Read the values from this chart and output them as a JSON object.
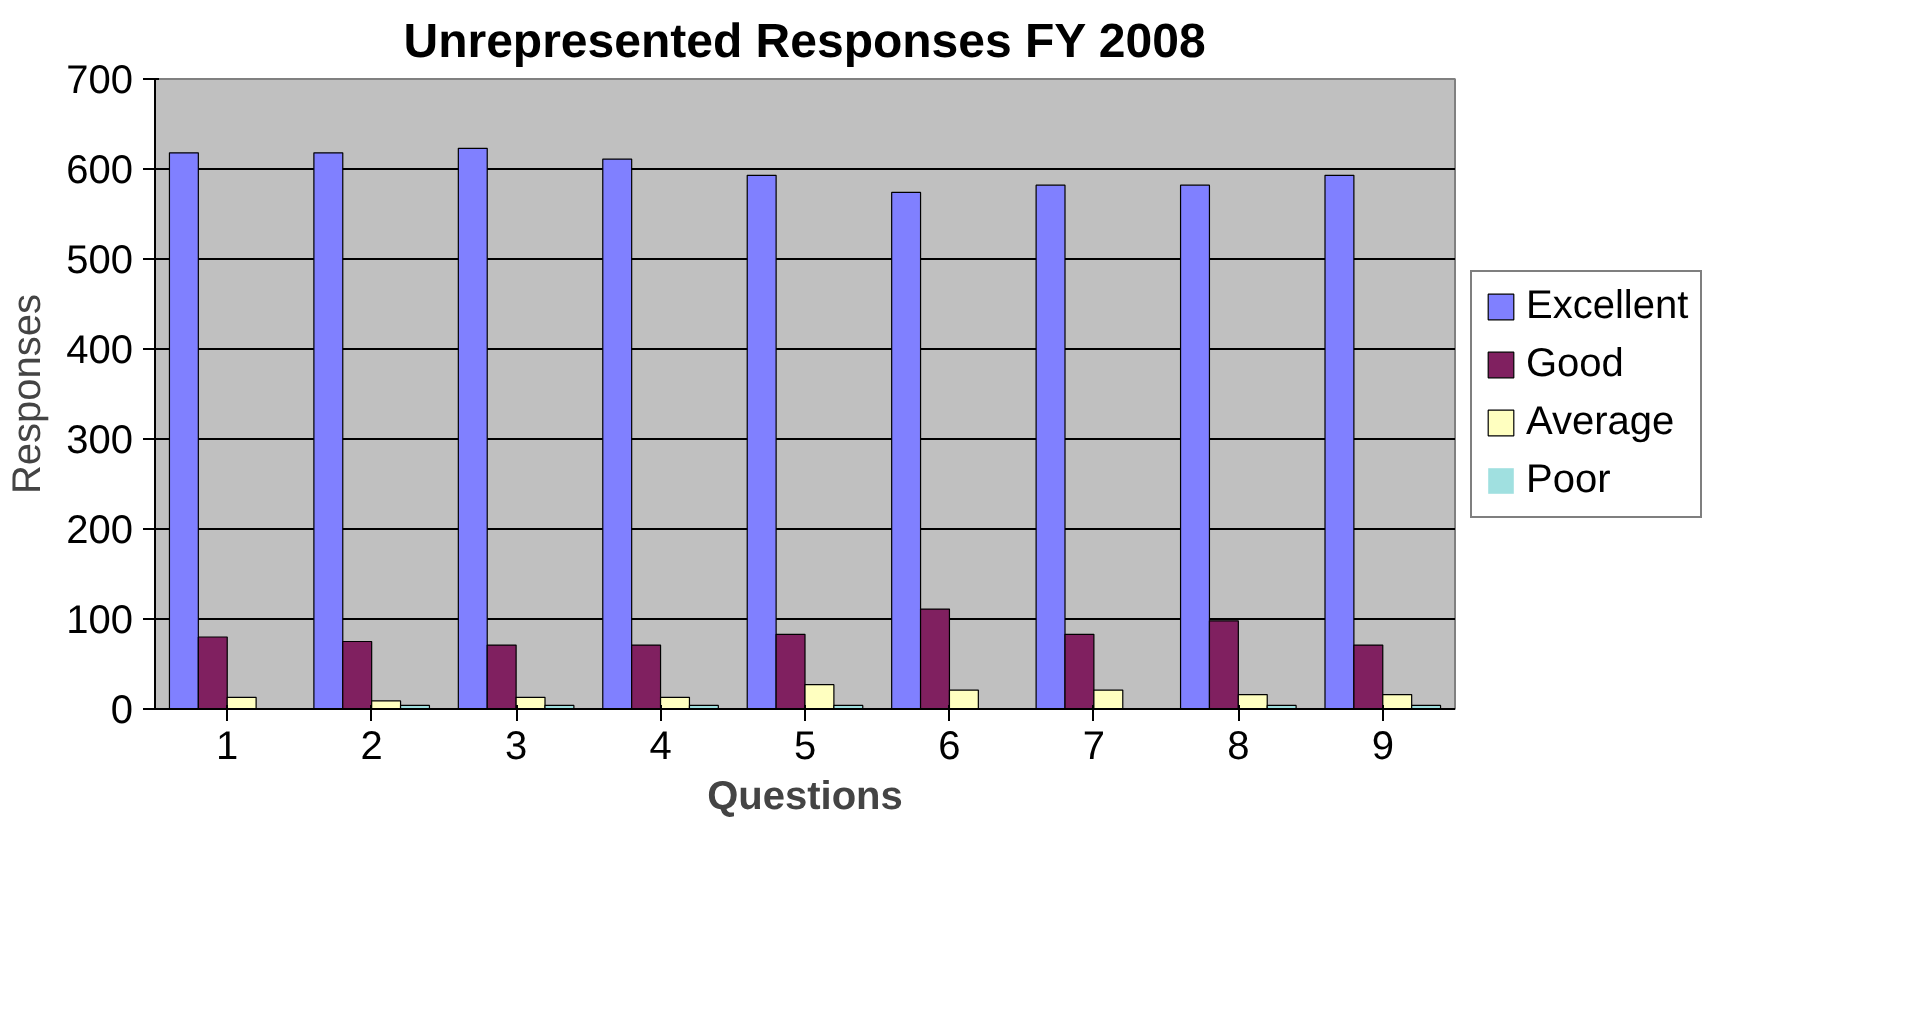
{
  "chart_data": {
    "type": "bar",
    "title": "Unrepresented Responses FY 2008",
    "xlabel": "Questions",
    "ylabel": "Responses",
    "categories": [
      "1",
      "2",
      "3",
      "4",
      "5",
      "6",
      "7",
      "8",
      "9"
    ],
    "series": [
      {
        "name": "Excellent",
        "color": "#8080ff",
        "values": [
          618,
          618,
          623,
          611,
          593,
          574,
          582,
          582,
          593
        ]
      },
      {
        "name": "Good",
        "color": "#802060",
        "values": [
          80,
          75,
          71,
          71,
          83,
          111,
          83,
          98,
          71
        ]
      },
      {
        "name": "Average",
        "color": "#ffffc0",
        "values": [
          13,
          9,
          13,
          13,
          27,
          21,
          21,
          16,
          16
        ]
      },
      {
        "name": "Poor",
        "color": "#a0e0e0",
        "values": [
          0,
          4,
          4,
          4,
          4,
          0,
          0,
          4,
          4
        ]
      }
    ],
    "ylim": [
      0,
      700
    ],
    "yticks": [
      0,
      100,
      200,
      300,
      400,
      500,
      600,
      700
    ],
    "grid": "y",
    "legend": "right"
  }
}
